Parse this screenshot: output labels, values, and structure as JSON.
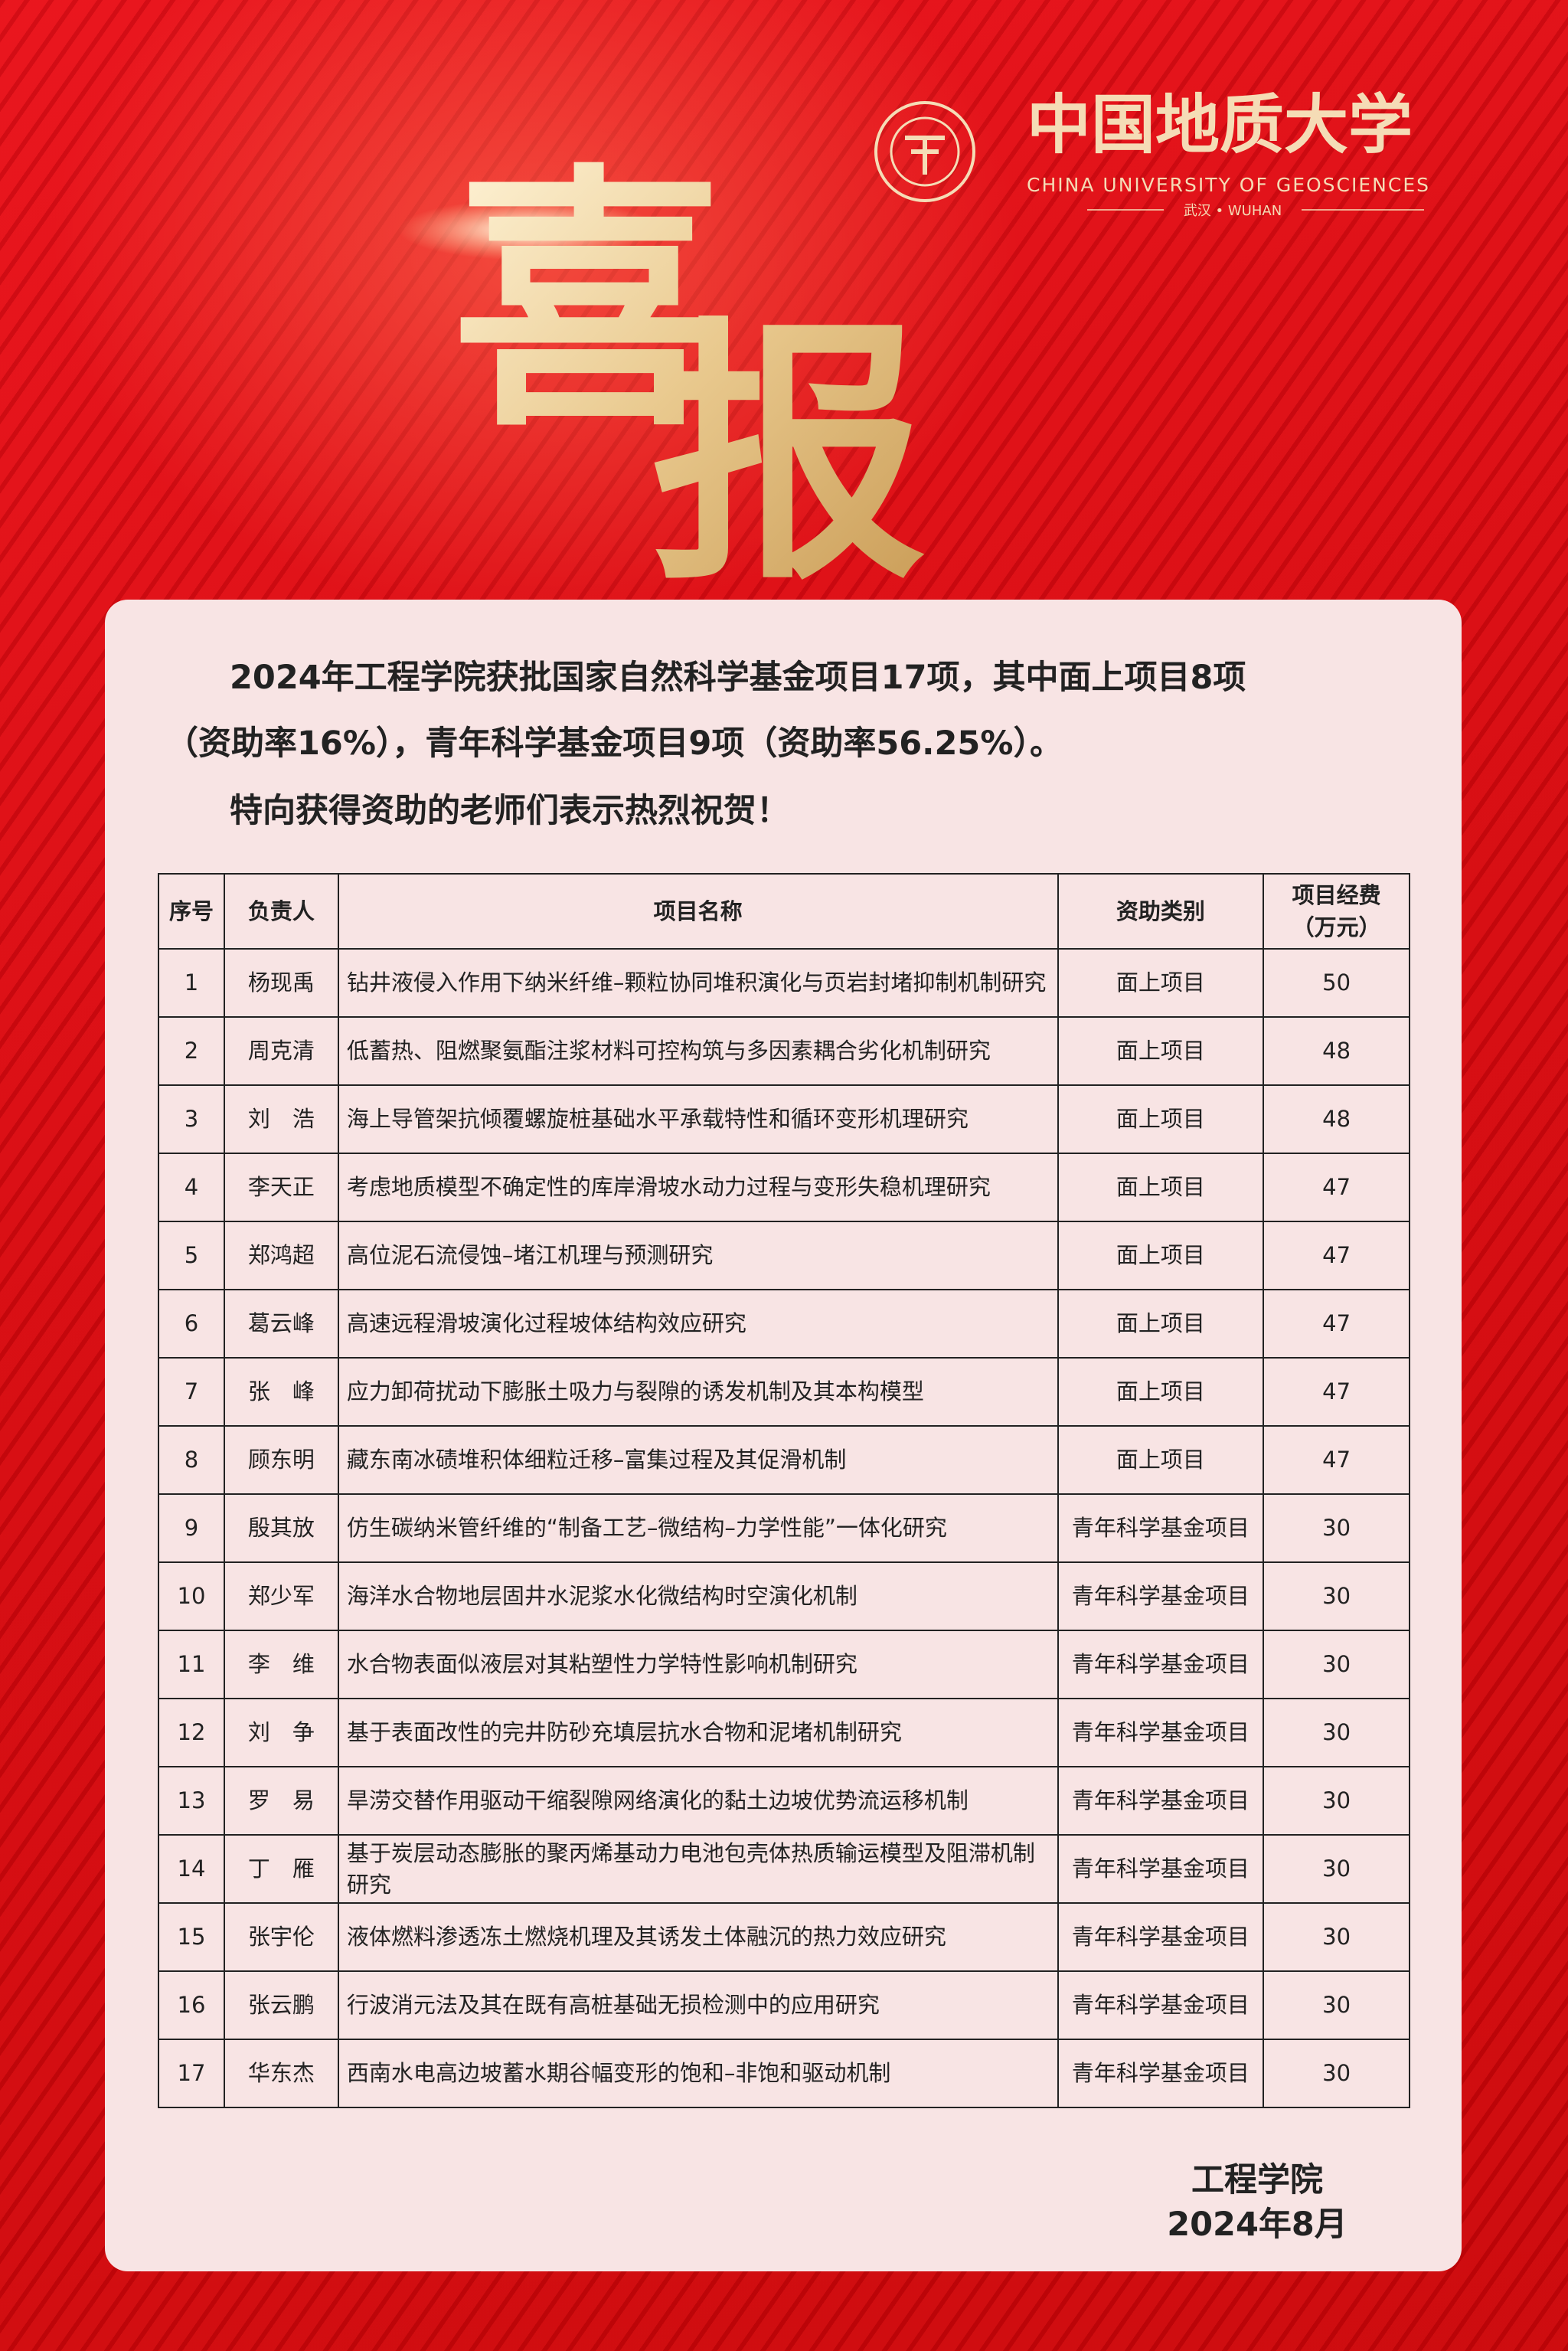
{
  "header": {
    "logo_name": "中国地质大学",
    "logo_english": "CHINA UNIVERSITY OF GEOSCIENCES",
    "logo_city": "武汉 • WUHAN",
    "title": "喜报"
  },
  "intro": {
    "lines": [
      "2024年工程学院获批国家自然科学基金项目17项，其中面上项目8项",
      "（资助率16%），青年科学基金项目9项（资助率56.25%）。"
    ],
    "greeting": "特向获得资助的老师们表示热烈祝贺！"
  },
  "table": {
    "columns": [
      "序号",
      "负责人",
      "项目名称",
      "资助类别",
      "项目经费\n（万元）"
    ],
    "rows": [
      [
        1,
        "杨现禹",
        "钻井液侵入作用下纳米纤维–颗粒协同堆积演化与页岩封堵抑制机制研究",
        "面上项目",
        50
      ],
      [
        2,
        "周克清",
        "低蓄热、阻燃聚氨酯注浆材料可控构筑与多因素耦合劣化机制研究",
        "面上项目",
        48
      ],
      [
        3,
        "刘　浩",
        "海上导管架抗倾覆螺旋桩基础水平承载特性和循环变形机理研究",
        "面上项目",
        48
      ],
      [
        4,
        "李天正",
        "考虑地质模型不确定性的库岸滑坡水动力过程与变形失稳机理研究",
        "面上项目",
        47
      ],
      [
        5,
        "郑鸿超",
        "高位泥石流侵蚀–堵江机理与预测研究",
        "面上项目",
        47
      ],
      [
        6,
        "葛云峰",
        "高速远程滑坡演化过程坡体结构效应研究",
        "面上项目",
        47
      ],
      [
        7,
        "张　峰",
        "应力卸荷扰动下膨胀土吸力与裂隙的诱发机制及其本构模型",
        "面上项目",
        47
      ],
      [
        8,
        "顾东明",
        "藏东南冰碛堆积体细粒迁移–富集过程及其促滑机制",
        "面上项目",
        47
      ],
      [
        9,
        "殷其放",
        "仿生碳纳米管纤维的“制备工艺–微结构–力学性能”一体化研究",
        "青年科学基金项目",
        30
      ],
      [
        10,
        "郑少军",
        "海洋水合物地层固井水泥浆水化微结构时空演化机制",
        "青年科学基金项目",
        30
      ],
      [
        11,
        "李　维",
        "水合物表面似液层对其粘塑性力学特性影响机制研究",
        "青年科学基金项目",
        30
      ],
      [
        12,
        "刘　争",
        "基于表面改性的完井防砂充填层抗水合物和泥堵机制研究",
        "青年科学基金项目",
        30
      ],
      [
        13,
        "罗　易",
        "旱涝交替作用驱动干缩裂隙网络演化的黏土边坡优势流运移机制",
        "青年科学基金项目",
        30
      ],
      [
        14,
        "丁　雁",
        "基于炭层动态膨胀的聚丙烯基动力电池包壳体热质输运模型及阻滞机制研究",
        "青年科学基金项目",
        30
      ],
      [
        15,
        "张宇伦",
        "液体燃料渗透冻土燃烧机理及其诱发土体融沉的热力效应研究",
        "青年科学基金项目",
        30
      ],
      [
        16,
        "张云鹏",
        "行波消元法及其在既有高桩基础无损检测中的应用研究",
        "青年科学基金项目",
        30
      ],
      [
        17,
        "华东杰",
        "西南水电高边坡蓄水期谷幅变形的饱和–非饱和驱动机制",
        "青年科学基金项目",
        30
      ]
    ]
  },
  "footer": {
    "department": "工程学院",
    "date": "2024年8月"
  }
}
